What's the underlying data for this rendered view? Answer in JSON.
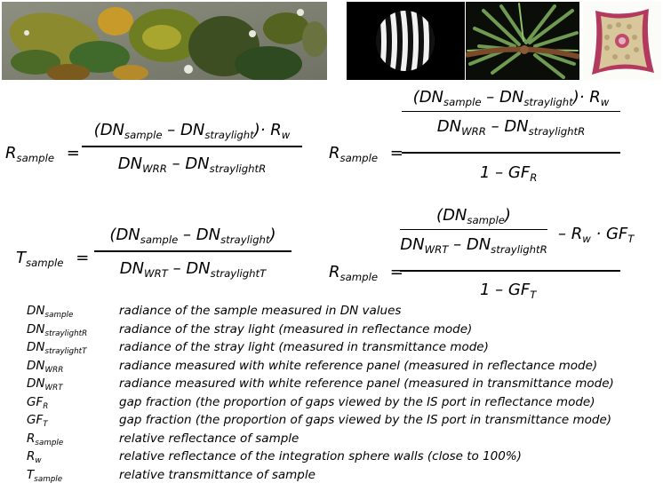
{
  "formulas": {
    "reflectance_basic": {
      "lhs": {
        "main": "R",
        "sub": "sample"
      },
      "num": [
        "(DN",
        "sample",
        " – DN",
        "straylight",
        ")· R",
        "w"
      ],
      "den": [
        "DN",
        "WRR",
        " – DN",
        "straylightR"
      ]
    },
    "transmittance": {
      "lhs": {
        "main": "T",
        "sub": "sample"
      },
      "num": [
        "(DN",
        "sample",
        " – DN",
        "straylight",
        ")"
      ],
      "den": [
        "DN",
        "WRT",
        " – DN",
        "straylightT"
      ]
    },
    "reflectance_gap": {
      "lhs": {
        "main": "R",
        "sub": "sample"
      },
      "inner_num": [
        "(DN",
        "sample",
        " – DN",
        "straylight",
        ")· R",
        "w"
      ],
      "inner_den": [
        "DN",
        "WRR",
        " – DN",
        "straylightR"
      ],
      "outer_den": [
        "1 – GF",
        "R"
      ]
    },
    "reflectance_transmission": {
      "lhs": {
        "main": "R",
        "sub": "sample"
      },
      "inner_num": [
        "(DN",
        "sample",
        ")"
      ],
      "inner_den": [
        "DN",
        "WRT",
        " – DN",
        "straylightR"
      ],
      "tail": [
        "– R",
        "w",
        " · GF",
        "T"
      ],
      "outer_den": [
        "1 – GF",
        "T"
      ]
    },
    "equals": "="
  },
  "legend": [
    {
      "main": "DN",
      "sub": "sample",
      "desc": "radiance of the sample measured in DN values"
    },
    {
      "main": "DN",
      "sub": "straylightR",
      "desc": "radiance of the stray light (measured in reflectance mode)"
    },
    {
      "main": "DN",
      "sub": "straylightT",
      "desc": "radiance of the stray light (measured in transmittance mode)"
    },
    {
      "main": "DN",
      "sub": "WRR",
      "desc": "radiance measured with white reference panel (measured in reflectance mode)"
    },
    {
      "main": "DN",
      "sub": "WRT",
      "desc": "radiance measured with white reference panel (measured in transmittance mode)"
    },
    {
      "main": "GF",
      "sub": "R",
      "desc": "gap fraction (the proportion of gaps viewed by the IS port in reflectance mode)"
    },
    {
      "main": "GF",
      "sub": "T",
      "desc": "gap fraction (the proportion of gaps viewed by the IS port in transmittance mode)"
    },
    {
      "main": "R",
      "sub": "sample",
      "desc": "relative reflectance of sample"
    },
    {
      "main": "R",
      "sub": "w",
      "desc": "relative reflectance of the integration sphere walls (close to 100%)"
    },
    {
      "main": "T",
      "sub": "sample",
      "desc": "relative transmittance of sample"
    }
  ],
  "photos": {
    "leaves": "leaves-photo",
    "stripes": "stripe-target-photo",
    "needles": "conifer-needles-photo",
    "section": "leaf-cross-section-photo"
  }
}
